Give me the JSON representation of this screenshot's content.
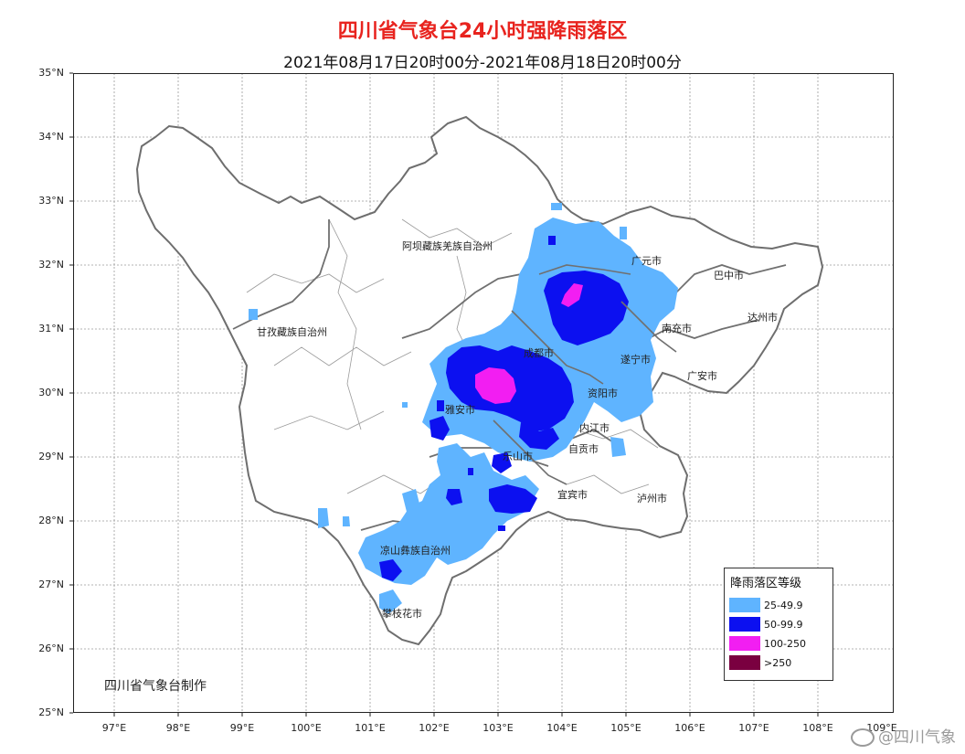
{
  "header": {
    "title": "四川省气象台24小时强降雨落区",
    "subtitle": "2021年08月17日20时00分-2021年08月18日20时00分"
  },
  "axes": {
    "lat_labels": [
      "35°N",
      "34°N",
      "33°N",
      "32°N",
      "31°N",
      "30°N",
      "29°N",
      "28°N",
      "27°N",
      "26°N",
      "25°N"
    ],
    "lon_labels": [
      "97°E",
      "98°E",
      "99°E",
      "100°E",
      "101°E",
      "102°E",
      "103°E",
      "104°E",
      "105°E",
      "106°E",
      "107°E",
      "108°E",
      "109°E"
    ]
  },
  "places": {
    "aba": "阿坝藏族羌族自治州",
    "ganzi": "甘孜藏族自治州",
    "liangshan": "凉山彝族自治州",
    "guangyuan": "广元市",
    "bazhong": "巴中市",
    "dazhou": "达州市",
    "nanchong": "南充市",
    "suining": "遂宁市",
    "guangan": "广安市",
    "chengdu": "成都市",
    "ziyang": "资阳市",
    "yaan": "雅安市",
    "neijiang": "内江市",
    "zigong": "自贡市",
    "leshan": "乐山市",
    "yibin": "宜宾市",
    "luzhou": "泸州市",
    "panzhihua": "攀枝花市"
  },
  "legend": {
    "title": "降雨落区等级",
    "items": [
      {
        "label": "25-49.9",
        "color": "#5fb4ff"
      },
      {
        "label": "50-99.9",
        "color": "#0c10f0"
      },
      {
        "label": "100-250",
        "color": "#f21ef2"
      },
      {
        "label": ">250",
        "color": "#7a0040"
      }
    ]
  },
  "credit": "四川省气象台制作",
  "watermark": "@四川气象"
}
